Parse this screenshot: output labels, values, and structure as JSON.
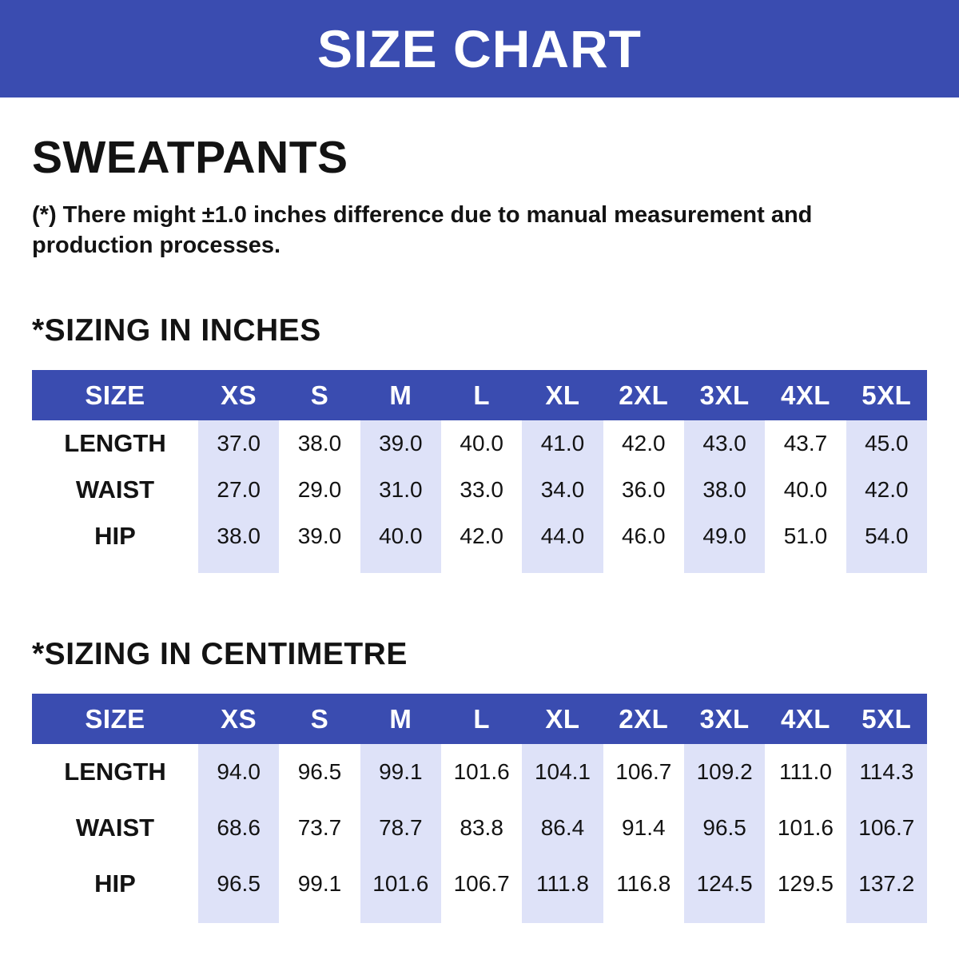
{
  "banner": {
    "title": "SIZE CHART"
  },
  "product": {
    "title": "SWEATPANTS"
  },
  "note": "(*) There might ±1.0 inches difference due to manual measurement and production processes.",
  "colors": {
    "accent_blue": "#3a4cb0",
    "stripe_lavender": "#dee2f8",
    "text": "#131313",
    "background": "#ffffff"
  },
  "tables": [
    {
      "heading": "*SIZING IN INCHES",
      "unit": "inches",
      "columns": [
        "SIZE",
        "XS",
        "S",
        "M",
        "L",
        "XL",
        "2XL",
        "3XL",
        "4XL",
        "5XL"
      ],
      "rows": [
        {
          "label": "LENGTH",
          "values": [
            "37.0",
            "38.0",
            "39.0",
            "40.0",
            "41.0",
            "42.0",
            "43.0",
            "43.7",
            "45.0"
          ]
        },
        {
          "label": "WAIST",
          "values": [
            "27.0",
            "29.0",
            "31.0",
            "33.0",
            "34.0",
            "36.0",
            "38.0",
            "40.0",
            "42.0"
          ]
        },
        {
          "label": "HIP",
          "values": [
            "38.0",
            "39.0",
            "40.0",
            "42.0",
            "44.0",
            "46.0",
            "49.0",
            "51.0",
            "54.0"
          ]
        }
      ]
    },
    {
      "heading": "*SIZING IN CENTIMETRE",
      "unit": "centimetre",
      "columns": [
        "SIZE",
        "XS",
        "S",
        "M",
        "L",
        "XL",
        "2XL",
        "3XL",
        "4XL",
        "5XL"
      ],
      "rows": [
        {
          "label": "LENGTH",
          "values": [
            "94.0",
            "96.5",
            "99.1",
            "101.6",
            "104.1",
            "106.7",
            "109.2",
            "111.0",
            "114.3"
          ]
        },
        {
          "label": "WAIST",
          "values": [
            "68.6",
            "73.7",
            "78.7",
            "83.8",
            "86.4",
            "91.4",
            "96.5",
            "101.6",
            "106.7"
          ]
        },
        {
          "label": "HIP",
          "values": [
            "96.5",
            "99.1",
            "101.6",
            "106.7",
            "111.8",
            "116.8",
            "124.5",
            "129.5",
            "137.2"
          ]
        }
      ]
    }
  ]
}
